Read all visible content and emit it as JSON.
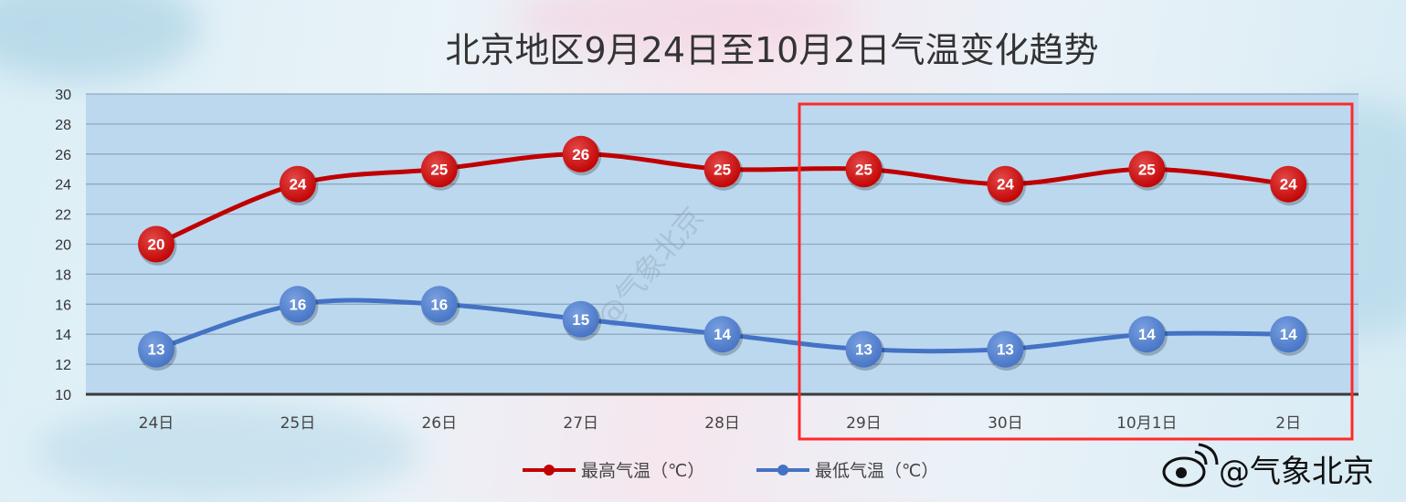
{
  "chart_data": {
    "type": "line",
    "title": "北京地区9月24日至10月2日气温变化趋势",
    "categories": [
      "24日",
      "25日",
      "26日",
      "27日",
      "28日",
      "29日",
      "30日",
      "10月1日",
      "2日"
    ],
    "series": [
      {
        "name": "最高气温（℃）",
        "color": "#c00000",
        "values": [
          20,
          24,
          25,
          26,
          25,
          25,
          24,
          25,
          24
        ]
      },
      {
        "name": "最低气温（℃）",
        "color": "#4472c4",
        "values": [
          13,
          16,
          16,
          15,
          14,
          13,
          13,
          14,
          14
        ]
      }
    ],
    "ylim": [
      10,
      30
    ],
    "yticks": [
      10,
      12,
      14,
      16,
      18,
      20,
      22,
      24,
      26,
      28,
      30
    ],
    "grid": true,
    "legend_position": "bottom",
    "plot_background": "#bcd8ef",
    "highlight_box": {
      "from_category": "29日",
      "to_category": "2日",
      "color": "#ff2a2a"
    }
  },
  "watermark": {
    "center": "@气象北京",
    "corner": "@气象北京",
    "corner_icon": "weibo-icon"
  }
}
